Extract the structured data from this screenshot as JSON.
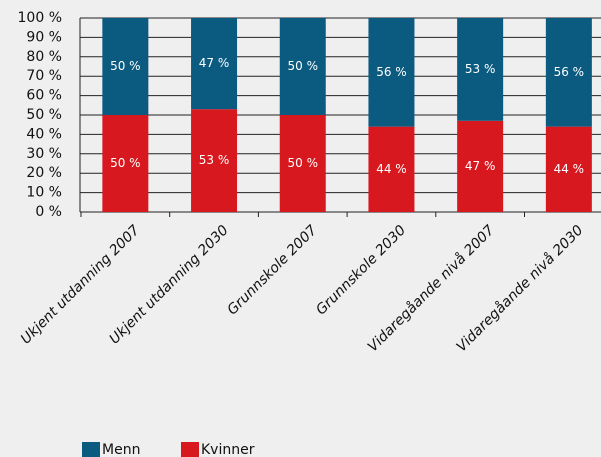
{
  "chart_data": {
    "type": "stacked_bar",
    "categories": [
      "Ukjent utdanning 2007",
      "Ukjent utdanning 2030",
      "Grunnskole 2007",
      "Grunnskole 2030",
      "Vidaregåande nivå 2007",
      "Vidaregåande nivå 2030"
    ],
    "series": [
      {
        "name": "Kvinner",
        "color": "#d7191f",
        "values": [
          50,
          53,
          50,
          44,
          47,
          44
        ],
        "value_labels": [
          "50 %",
          "53 %",
          "50 %",
          "44 %",
          "47 %",
          "44 %"
        ]
      },
      {
        "name": "Menn",
        "color": "#0b5a80",
        "values": [
          50,
          47,
          50,
          56,
          53,
          56
        ],
        "value_labels": [
          "50 %",
          "47 %",
          "50 %",
          "56 %",
          "53 %",
          "56 %"
        ]
      }
    ],
    "ylim": [
      0,
      100
    ],
    "yticks": [
      {
        "value": 0,
        "label": "0 %"
      },
      {
        "value": 10,
        "label": "10 %"
      },
      {
        "value": 20,
        "label": "20 %"
      },
      {
        "value": 30,
        "label": "30 %"
      },
      {
        "value": 40,
        "label": "40 %"
      },
      {
        "value": 50,
        "label": "50 %"
      },
      {
        "value": 60,
        "label": "60 %"
      },
      {
        "value": 70,
        "label": "70 %"
      },
      {
        "value": 80,
        "label": "80 %"
      },
      {
        "value": 90,
        "label": "90 %"
      },
      {
        "value": 100,
        "label": "100 %"
      }
    ],
    "grid": true
  }
}
